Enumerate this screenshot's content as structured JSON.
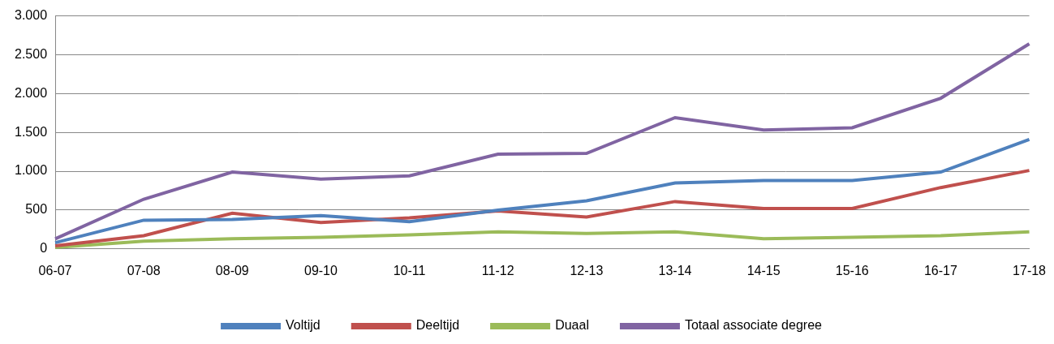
{
  "chart_data": {
    "type": "line",
    "categories": [
      "06-07",
      "07-08",
      "08-09",
      "09-10",
      "10-11",
      "11-12",
      "12-13",
      "13-14",
      "14-15",
      "15-16",
      "16-17",
      "17-18"
    ],
    "series": [
      {
        "name": "Voltijd",
        "color": "#4f81bd",
        "values": [
          80,
          370,
          380,
          430,
          350,
          500,
          620,
          850,
          880,
          880,
          990,
          1410
        ]
      },
      {
        "name": "Deeltijd",
        "color": "#c0504d",
        "values": [
          40,
          170,
          460,
          340,
          400,
          490,
          410,
          610,
          520,
          520,
          790,
          1010
        ]
      },
      {
        "name": "Duaal",
        "color": "#9bbb59",
        "values": [
          20,
          100,
          130,
          150,
          180,
          220,
          200,
          220,
          130,
          150,
          170,
          220
        ]
      },
      {
        "name": "Totaal associate degree",
        "color": "#8064a2",
        "values": [
          130,
          640,
          990,
          900,
          940,
          1220,
          1230,
          1690,
          1530,
          1560,
          1940,
          2640
        ]
      }
    ],
    "ylim": [
      0,
      3000
    ],
    "yticks": [
      0,
      500,
      {
        "value": 1000,
        "label": "1.000"
      },
      {
        "value": 1500,
        "label": "1.500"
      },
      {
        "value": 2000,
        "label": "2.000"
      },
      {
        "value": 2500,
        "label": "2.500"
      },
      {
        "value": 3000,
        "label": "3.000"
      }
    ],
    "grid": true,
    "legend": "bottom"
  }
}
